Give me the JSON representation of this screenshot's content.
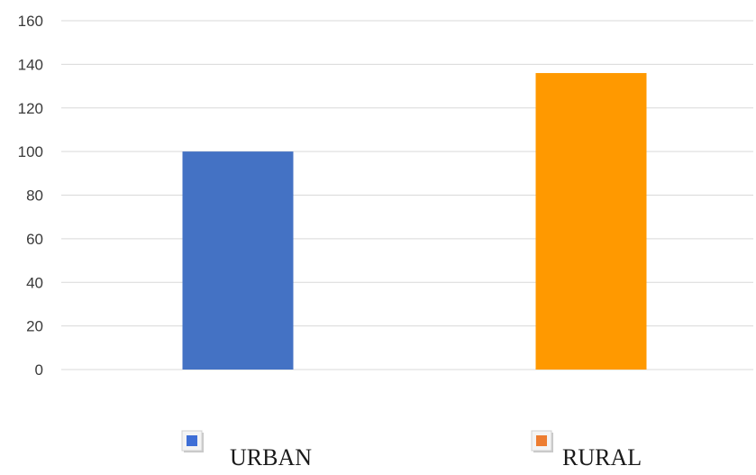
{
  "chart_data": {
    "type": "bar",
    "categories": [
      "URBAN",
      "RURAL"
    ],
    "values": [
      100,
      136
    ],
    "colors": [
      "#4472c4",
      "#ff9900"
    ],
    "legend_icon_colors": [
      "#3f6fd6",
      "#ed7d31"
    ],
    "ylim": [
      0,
      160
    ],
    "yticks": [
      0,
      20,
      40,
      60,
      80,
      100,
      120,
      140,
      160
    ],
    "grid": true,
    "legend_placement": "bottom"
  }
}
